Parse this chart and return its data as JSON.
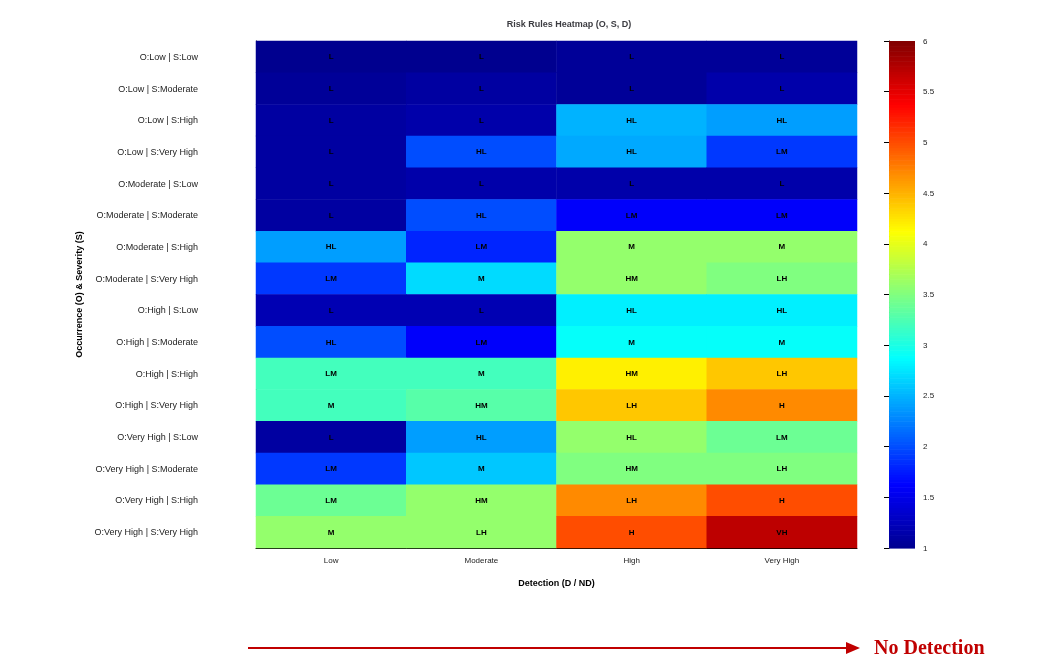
{
  "chart_data": {
    "type": "heatmap",
    "title": "Risk Rules Heatmap (O, S, D)",
    "xlabel": "Detection (D / ND)",
    "ylabel": "Occurrence (O) & Severity (S)",
    "categories": [
      "Low",
      "Moderate",
      "High",
      "Very High"
    ],
    "y_categories": [
      "O:Low | S:Low",
      "O:Low | S:Moderate",
      "O:Low | S:High",
      "O:Low | S:Very High",
      "O:Moderate | S:Low",
      "O:Moderate | S:Moderate",
      "O:Moderate | S:High",
      "O:Moderate | S:Very High",
      "O:High | S:Low",
      "O:High | S:Moderate",
      "O:High | S:High",
      "O:High | S:Very High",
      "O:Very High | S:Low",
      "O:Very High | S:Moderate",
      "O:Very High | S:High",
      "O:Very High | S:Very High"
    ],
    "cells": [
      [
        1.0,
        1.0,
        1.05,
        1.05
      ],
      [
        1.05,
        1.1,
        1.05,
        1.15
      ],
      [
        1.1,
        1.15,
        2.5,
        2.4
      ],
      [
        1.1,
        2.0,
        2.45,
        1.9
      ],
      [
        1.1,
        1.15,
        1.15,
        1.15
      ],
      [
        1.1,
        2.0,
        1.6,
        1.6
      ],
      [
        2.4,
        1.8,
        3.6,
        3.6
      ],
      [
        1.9,
        2.7,
        3.6,
        3.5
      ],
      [
        1.2,
        1.2,
        2.8,
        2.8
      ],
      [
        2.0,
        1.6,
        2.9,
        2.9
      ],
      [
        3.2,
        3.2,
        4.2,
        4.4
      ],
      [
        3.2,
        3.3,
        4.4,
        4.7
      ],
      [
        1.1,
        2.4,
        3.6,
        3.4
      ],
      [
        1.9,
        2.6,
        3.5,
        3.5
      ],
      [
        3.4,
        3.6,
        4.7,
        5.0
      ],
      [
        3.6,
        3.6,
        5.0,
        5.7
      ]
    ],
    "cell_labels": [
      [
        "L",
        "L",
        "L",
        "L"
      ],
      [
        "L",
        "L",
        "L",
        "L"
      ],
      [
        "L",
        "L",
        "HL",
        "HL"
      ],
      [
        "L",
        "HL",
        "HL",
        "LM"
      ],
      [
        "L",
        "L",
        "L",
        "L"
      ],
      [
        "L",
        "HL",
        "LM",
        "LM"
      ],
      [
        "HL",
        "LM",
        "M",
        "M"
      ],
      [
        "LM",
        "M",
        "HM",
        "LH"
      ],
      [
        "L",
        "L",
        "HL",
        "HL"
      ],
      [
        "HL",
        "LM",
        "M",
        "M"
      ],
      [
        "LM",
        "M",
        "HM",
        "LH"
      ],
      [
        "M",
        "HM",
        "LH",
        "H"
      ],
      [
        "L",
        "HL",
        "HL",
        "LM"
      ],
      [
        "LM",
        "M",
        "HM",
        "LH"
      ],
      [
        "LM",
        "HM",
        "LH",
        "H"
      ],
      [
        "M",
        "LH",
        "H",
        "VH"
      ]
    ],
    "clim": [
      1,
      6
    ],
    "cticks": [
      1,
      1.5,
      2,
      2.5,
      3,
      3.5,
      4,
      4.5,
      5,
      5.5,
      6
    ],
    "annotations": [
      "No Detection"
    ]
  }
}
